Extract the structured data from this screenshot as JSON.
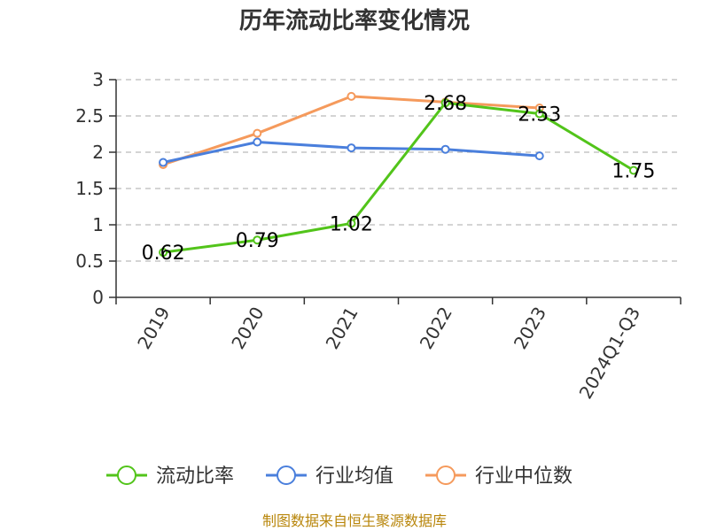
{
  "chart_data": {
    "type": "line",
    "title": "历年流动比率变化情况",
    "categories": [
      "2019",
      "2020",
      "2021",
      "2022",
      "2023",
      "2024Q1-Q3"
    ],
    "ylim": [
      0,
      3
    ],
    "yticks": [
      0,
      0.5,
      1,
      1.5,
      2,
      2.5,
      3
    ],
    "ytick_labels": [
      "0",
      "0.5",
      "1",
      "1.5",
      "2",
      "2.5",
      "3"
    ],
    "grid": true,
    "legend_position": "bottom",
    "series": [
      {
        "name": "流动比率",
        "color": "#52c41a",
        "values": [
          0.62,
          0.79,
          1.02,
          2.68,
          2.53,
          1.75
        ],
        "labels": [
          "0.62",
          "0.79",
          "1.02",
          "2.68",
          "2.53",
          "1.75"
        ]
      },
      {
        "name": "行业均值",
        "color": "#4a7fdc",
        "values": [
          1.86,
          2.14,
          2.06,
          2.04,
          1.95,
          null
        ]
      },
      {
        "name": "行业中位数",
        "color": "#f59a5c",
        "values": [
          1.83,
          2.26,
          2.77,
          2.69,
          2.61,
          null
        ]
      }
    ]
  },
  "footer": {
    "source": "制图数据来自恒生聚源数据库"
  }
}
